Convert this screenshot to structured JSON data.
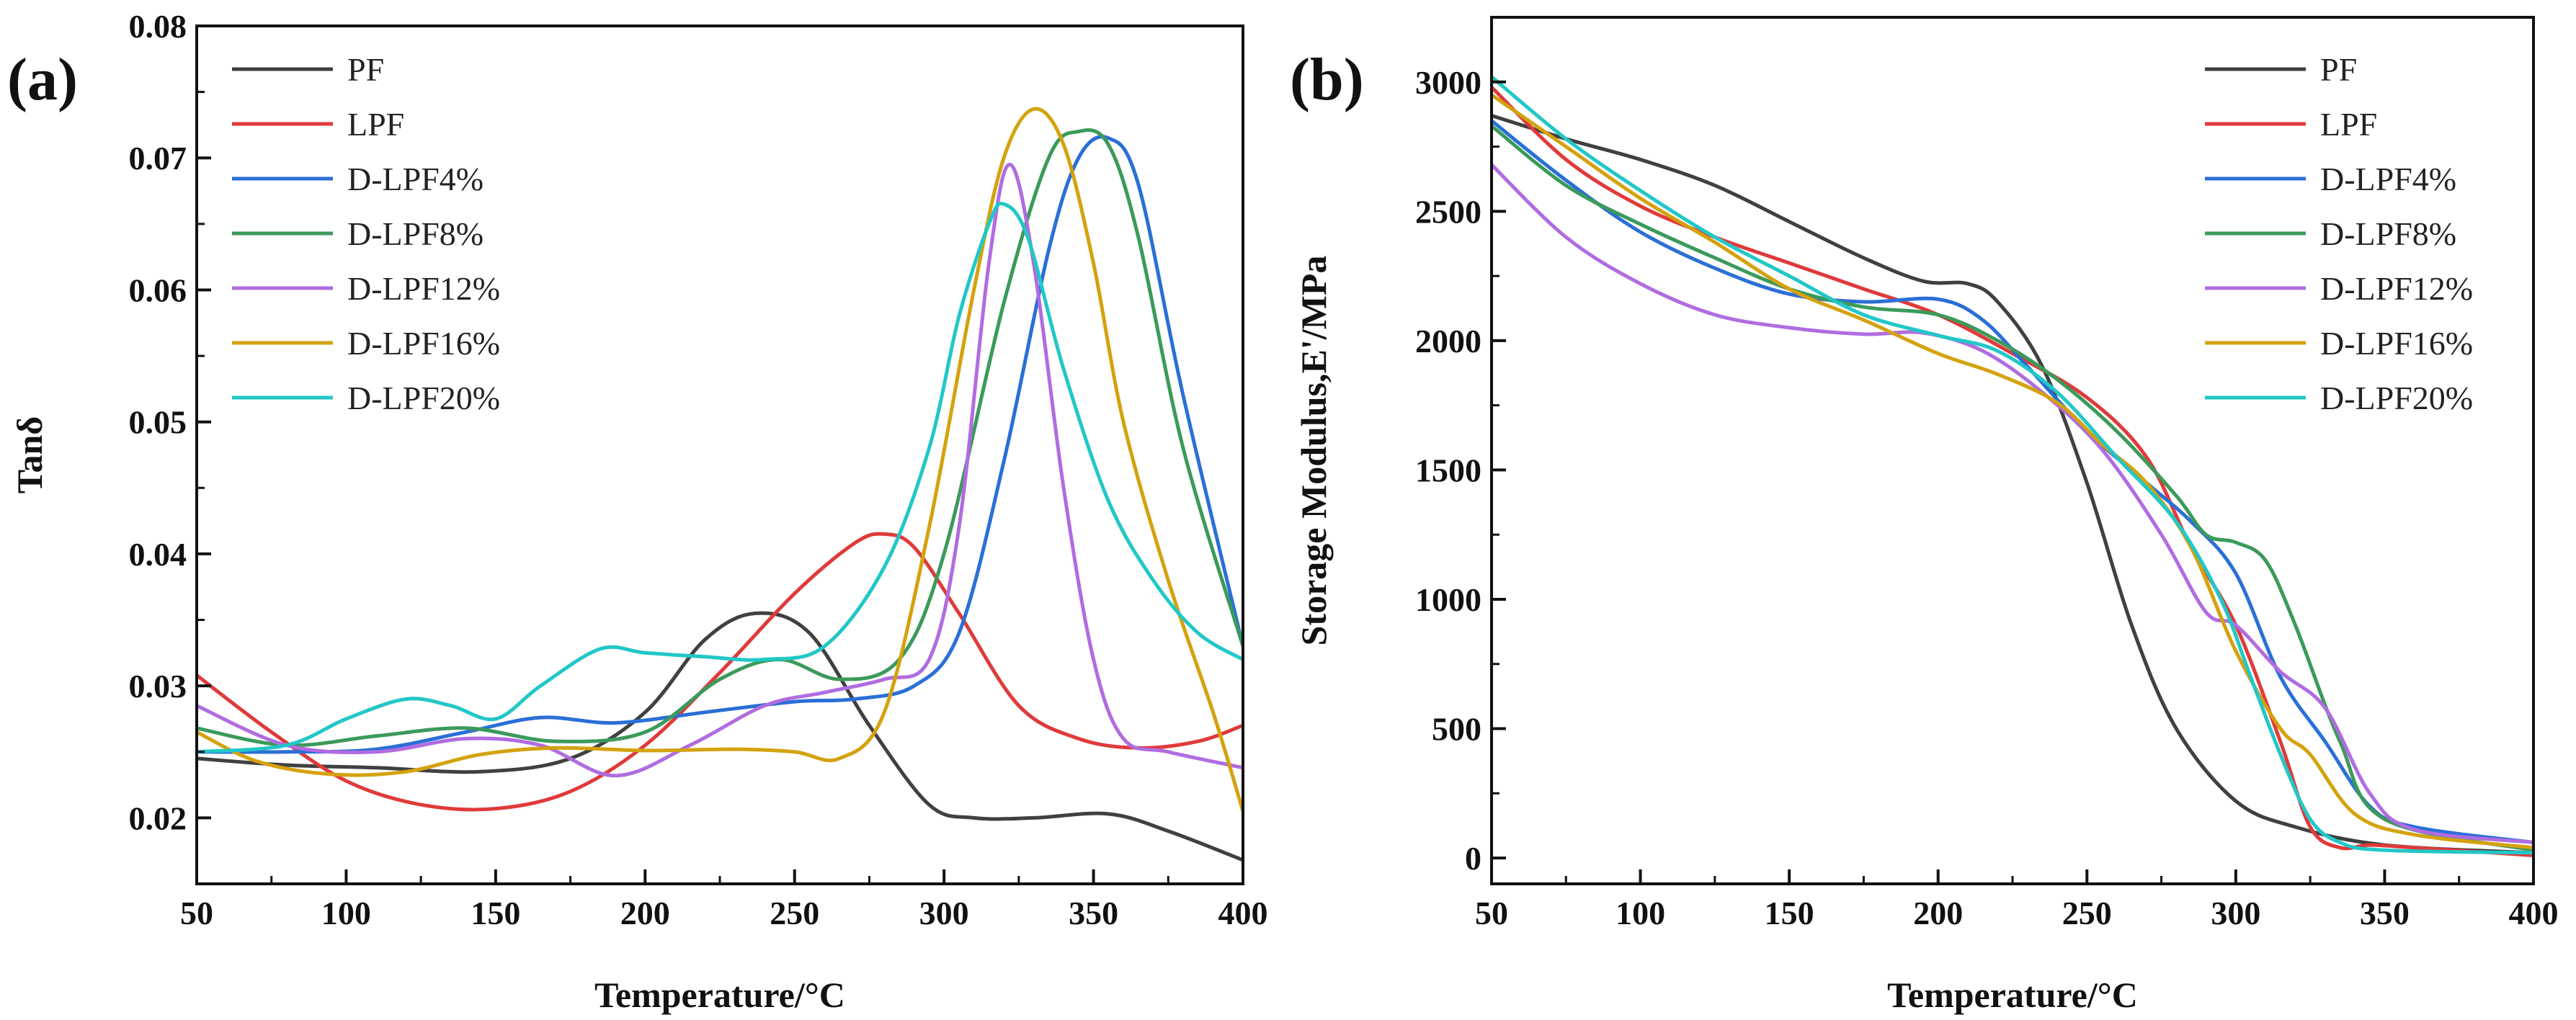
{
  "chart_data": [
    {
      "type": "line",
      "panel_label": "(a)",
      "title": "",
      "xlabel": "Temperature/°C",
      "ylabel": "Tanδ",
      "xlim": [
        50,
        400
      ],
      "ylim": [
        0.015,
        0.08
      ],
      "xticks": [
        50,
        100,
        150,
        200,
        250,
        300,
        350,
        400
      ],
      "xtick_labels": [
        "50",
        "100",
        "150",
        "200",
        "250",
        "300",
        "350",
        "400"
      ],
      "yticks": [
        0.02,
        0.03,
        0.04,
        0.05,
        0.06,
        0.07,
        0.08
      ],
      "ytick_labels": [
        "0.02",
        "0.03",
        "0.04",
        "0.05",
        "0.06",
        "0.07",
        "0.08"
      ],
      "legend_position": "top-left",
      "grid": false,
      "series": [
        {
          "name": "PF",
          "color": "#404040",
          "x": [
            50,
            80,
            110,
            145,
            175,
            200,
            220,
            237,
            255,
            275,
            295,
            310,
            330,
            355,
            375,
            400
          ],
          "y": [
            0.0245,
            0.024,
            0.0238,
            0.0235,
            0.0245,
            0.028,
            0.0335,
            0.0355,
            0.034,
            0.027,
            0.021,
            0.02,
            0.02,
            0.0203,
            0.019,
            0.0168
          ]
        },
        {
          "name": "LPF",
          "color": "#e03a3a",
          "x": [
            50,
            75,
            100,
            125,
            150,
            175,
            200,
            225,
            250,
            270,
            280,
            290,
            305,
            325,
            345,
            365,
            385,
            400
          ],
          "y": [
            0.0308,
            0.0265,
            0.0228,
            0.021,
            0.0207,
            0.022,
            0.0255,
            0.031,
            0.037,
            0.0408,
            0.0415,
            0.0405,
            0.0355,
            0.0285,
            0.026,
            0.0253,
            0.0258,
            0.027
          ]
        },
        {
          "name": "D-LPF4%",
          "color": "#2a6fd6",
          "x": [
            50,
            80,
            110,
            140,
            165,
            190,
            220,
            250,
            270,
            290,
            305,
            320,
            335,
            345,
            355,
            365,
            380,
            400
          ],
          "y": [
            0.025,
            0.025,
            0.0252,
            0.0265,
            0.0276,
            0.0272,
            0.028,
            0.0288,
            0.029,
            0.03,
            0.034,
            0.047,
            0.063,
            0.07,
            0.0715,
            0.068,
            0.052,
            0.033
          ]
        },
        {
          "name": "D-LPF8%",
          "color": "#3b9a5a",
          "x": [
            50,
            80,
            110,
            140,
            170,
            200,
            225,
            245,
            265,
            285,
            300,
            320,
            335,
            345,
            355,
            365,
            380,
            400
          ],
          "y": [
            0.0268,
            0.0255,
            0.0262,
            0.0268,
            0.0258,
            0.0265,
            0.0305,
            0.032,
            0.0305,
            0.032,
            0.04,
            0.059,
            0.07,
            0.072,
            0.071,
            0.064,
            0.048,
            0.033
          ]
        },
        {
          "name": "D-LPF12%",
          "color": "#b06ce0",
          "x": [
            50,
            80,
            110,
            140,
            165,
            190,
            215,
            240,
            260,
            280,
            295,
            305,
            315,
            322,
            330,
            340,
            350,
            360,
            375,
            400
          ],
          "y": [
            0.0285,
            0.0255,
            0.025,
            0.026,
            0.0255,
            0.0232,
            0.0255,
            0.0285,
            0.0295,
            0.0305,
            0.032,
            0.042,
            0.062,
            0.0695,
            0.062,
            0.045,
            0.032,
            0.026,
            0.025,
            0.0238
          ]
        },
        {
          "name": "D-LPF16%",
          "color": "#d4a20e",
          "x": [
            50,
            70,
            95,
            120,
            145,
            170,
            200,
            230,
            250,
            265,
            280,
            295,
            310,
            320,
            330,
            340,
            350,
            360,
            375,
            390,
            400
          ],
          "y": [
            0.0265,
            0.0243,
            0.0233,
            0.0235,
            0.0248,
            0.0253,
            0.0251,
            0.0252,
            0.025,
            0.0245,
            0.028,
            0.042,
            0.06,
            0.07,
            0.0737,
            0.071,
            0.062,
            0.05,
            0.038,
            0.028,
            0.0205
          ]
        },
        {
          "name": "D-LPF20%",
          "color": "#22c7c7",
          "x": [
            50,
            80,
            100,
            120,
            135,
            150,
            165,
            185,
            200,
            220,
            240,
            260,
            280,
            295,
            305,
            315,
            320,
            328,
            340,
            355,
            370,
            385,
            400
          ],
          "y": [
            0.025,
            0.0255,
            0.0275,
            0.029,
            0.0285,
            0.0275,
            0.03,
            0.0328,
            0.0325,
            0.0322,
            0.032,
            0.033,
            0.039,
            0.048,
            0.058,
            0.065,
            0.0665,
            0.064,
            0.054,
            0.044,
            0.038,
            0.034,
            0.032
          ]
        }
      ]
    },
    {
      "type": "line",
      "panel_label": "(b)",
      "title": "",
      "xlabel": "Temperature/°C",
      "ylabel": "Storage Modulus,E'/MPa",
      "xlim": [
        50,
        400
      ],
      "ylim": [
        -100,
        3250
      ],
      "xticks": [
        50,
        100,
        150,
        200,
        250,
        300,
        350,
        400
      ],
      "xtick_labels": [
        "50",
        "100",
        "150",
        "200",
        "250",
        "300",
        "350",
        "400"
      ],
      "yticks": [
        0,
        500,
        1000,
        1500,
        2000,
        2500,
        3000
      ],
      "ytick_labels": [
        "0",
        "500",
        "1000",
        "1500",
        "2000",
        "2500",
        "3000"
      ],
      "legend_position": "top-right",
      "grid": false,
      "series": [
        {
          "name": "PF",
          "color": "#404040",
          "x": [
            50,
            75,
            100,
            125,
            150,
            175,
            195,
            210,
            220,
            235,
            250,
            265,
            280,
            300,
            320,
            350,
            400
          ],
          "y": [
            2870,
            2780,
            2700,
            2600,
            2460,
            2320,
            2230,
            2220,
            2150,
            1900,
            1450,
            900,
            500,
            220,
            120,
            50,
            20
          ]
        },
        {
          "name": "LPF",
          "color": "#e03a3a",
          "x": [
            50,
            75,
            100,
            125,
            150,
            175,
            200,
            225,
            250,
            270,
            285,
            300,
            315,
            325,
            335,
            345,
            360,
            400
          ],
          "y": [
            2980,
            2700,
            2520,
            2400,
            2300,
            2200,
            2100,
            1950,
            1780,
            1550,
            1200,
            900,
            450,
            120,
            40,
            50,
            40,
            10
          ]
        },
        {
          "name": "D-LPF4%",
          "color": "#2a6fd6",
          "x": [
            50,
            75,
            100,
            125,
            150,
            175,
            200,
            215,
            230,
            250,
            270,
            285,
            300,
            315,
            330,
            345,
            360,
            400
          ],
          "y": [
            2850,
            2620,
            2420,
            2280,
            2180,
            2150,
            2160,
            2080,
            1900,
            1650,
            1450,
            1300,
            1100,
            700,
            450,
            200,
            120,
            60
          ]
        },
        {
          "name": "D-LPF8%",
          "color": "#3b9a5a",
          "x": [
            50,
            75,
            100,
            125,
            150,
            175,
            200,
            220,
            240,
            260,
            280,
            290,
            300,
            310,
            320,
            335,
            350,
            400
          ],
          "y": [
            2830,
            2600,
            2450,
            2320,
            2200,
            2130,
            2100,
            2000,
            1850,
            1650,
            1400,
            1250,
            1220,
            1150,
            900,
            450,
            150,
            30
          ]
        },
        {
          "name": "D-LPF12%",
          "color": "#b06ce0",
          "x": [
            50,
            75,
            100,
            125,
            150,
            175,
            195,
            215,
            235,
            255,
            275,
            290,
            300,
            315,
            330,
            345,
            360,
            400
          ],
          "y": [
            2680,
            2400,
            2220,
            2100,
            2050,
            2025,
            2030,
            1960,
            1800,
            1580,
            1250,
            950,
            900,
            720,
            580,
            250,
            110,
            60
          ]
        },
        {
          "name": "D-LPF16%",
          "color": "#d4a20e",
          "x": [
            50,
            75,
            100,
            125,
            150,
            175,
            200,
            220,
            240,
            255,
            270,
            285,
            300,
            315,
            325,
            340,
            360,
            400
          ],
          "y": [
            2950,
            2750,
            2550,
            2380,
            2200,
            2080,
            1950,
            1870,
            1760,
            1600,
            1450,
            1200,
            800,
            500,
            400,
            170,
            90,
            40
          ]
        },
        {
          "name": "D-LPF20%",
          "color": "#22c7c7",
          "x": [
            50,
            75,
            100,
            125,
            150,
            175,
            200,
            220,
            240,
            260,
            280,
            295,
            305,
            315,
            325,
            335,
            350,
            400
          ],
          "y": [
            3020,
            2780,
            2580,
            2400,
            2250,
            2100,
            2020,
            1960,
            1800,
            1550,
            1300,
            1000,
            700,
            400,
            150,
            60,
            30,
            20
          ]
        }
      ]
    }
  ]
}
